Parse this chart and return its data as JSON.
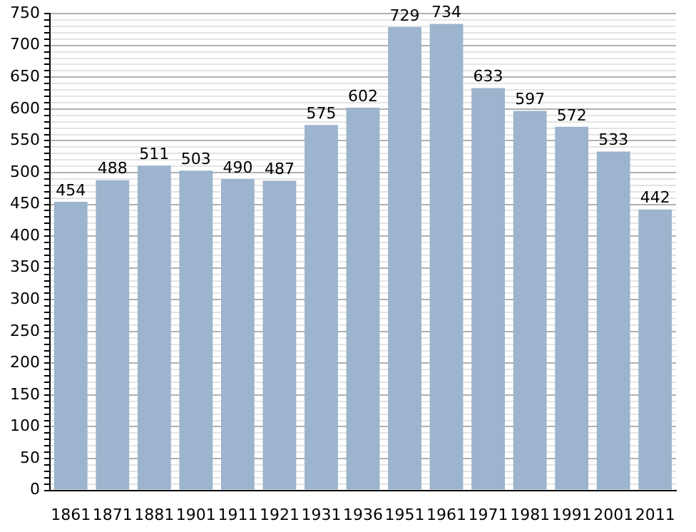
{
  "chart_data": {
    "type": "bar",
    "categories": [
      "1861",
      "1871",
      "1881",
      "1901",
      "1911",
      "1921",
      "1931",
      "1936",
      "1951",
      "1961",
      "1971",
      "1981",
      "1991",
      "2001",
      "2011"
    ],
    "values": [
      454,
      488,
      511,
      503,
      490,
      487,
      575,
      602,
      729,
      734,
      633,
      597,
      572,
      533,
      442
    ],
    "color": "#9cb4cd",
    "ylim": [
      0,
      750
    ],
    "yticks": [
      0,
      {
        "value": 10,
        "label": null
      },
      {
        "value": 20,
        "label": null
      },
      {
        "value": 30,
        "label": null
      },
      {
        "value": 40,
        "label": null
      },
      50,
      {
        "value": 60,
        "label": null
      },
      {
        "value": 70,
        "label": null
      },
      {
        "value": 80,
        "label": null
      },
      {
        "value": 90,
        "label": null
      },
      100,
      {
        "value": 110,
        "label": null
      },
      {
        "value": 120,
        "label": null
      },
      {
        "value": 130,
        "label": null
      },
      {
        "value": 140,
        "label": null
      },
      150,
      {
        "value": 160,
        "label": null
      },
      {
        "value": 170,
        "label": null
      },
      {
        "value": 180,
        "label": null
      },
      {
        "value": 190,
        "label": null
      },
      200,
      {
        "value": 210,
        "label": null
      },
      {
        "value": 220,
        "label": null
      },
      {
        "value": 230,
        "label": null
      },
      {
        "value": 240,
        "label": null
      },
      250,
      {
        "value": 260,
        "label": null
      },
      {
        "value": 270,
        "label": null
      },
      {
        "value": 280,
        "label": null
      },
      {
        "value": 290,
        "label": null
      },
      300,
      {
        "value": 310,
        "label": null
      },
      {
        "value": 320,
        "label": null
      },
      {
        "value": 330,
        "label": null
      },
      {
        "value": 340,
        "label": null
      },
      350,
      {
        "value": 360,
        "label": null
      },
      {
        "value": 370,
        "label": null
      },
      {
        "value": 380,
        "label": null
      },
      {
        "value": 390,
        "label": null
      },
      400,
      {
        "value": 410,
        "label": null
      },
      {
        "value": 420,
        "label": null
      },
      {
        "value": 430,
        "label": null
      },
      {
        "value": 440,
        "label": null
      },
      450,
      {
        "value": 460,
        "label": null
      },
      {
        "value": 470,
        "label": null
      },
      {
        "value": 480,
        "label": null
      },
      {
        "value": 490,
        "label": null
      },
      500,
      {
        "value": 510,
        "label": null
      },
      {
        "value": 520,
        "label": null
      },
      {
        "value": 530,
        "label": null
      },
      {
        "value": 540,
        "label": null
      },
      550,
      {
        "value": 560,
        "label": null
      },
      {
        "value": 570,
        "label": null
      },
      {
        "value": 580,
        "label": null
      },
      {
        "value": 590,
        "label": null
      },
      600,
      {
        "value": 610,
        "label": null
      },
      {
        "value": 620,
        "label": null
      },
      {
        "value": 630,
        "label": null
      },
      {
        "value": 640,
        "label": null
      },
      650,
      {
        "value": 660,
        "label": null
      },
      {
        "value": 670,
        "label": null
      },
      {
        "value": 680,
        "label": null
      },
      {
        "value": 690,
        "label": null
      },
      700,
      {
        "value": 710,
        "label": null
      },
      {
        "value": 720,
        "label": null
      },
      {
        "value": 730,
        "label": null
      },
      {
        "value": 740,
        "label": null
      },
      750
    ],
    "grid": "y",
    "data_labels": true,
    "legend": false
  }
}
